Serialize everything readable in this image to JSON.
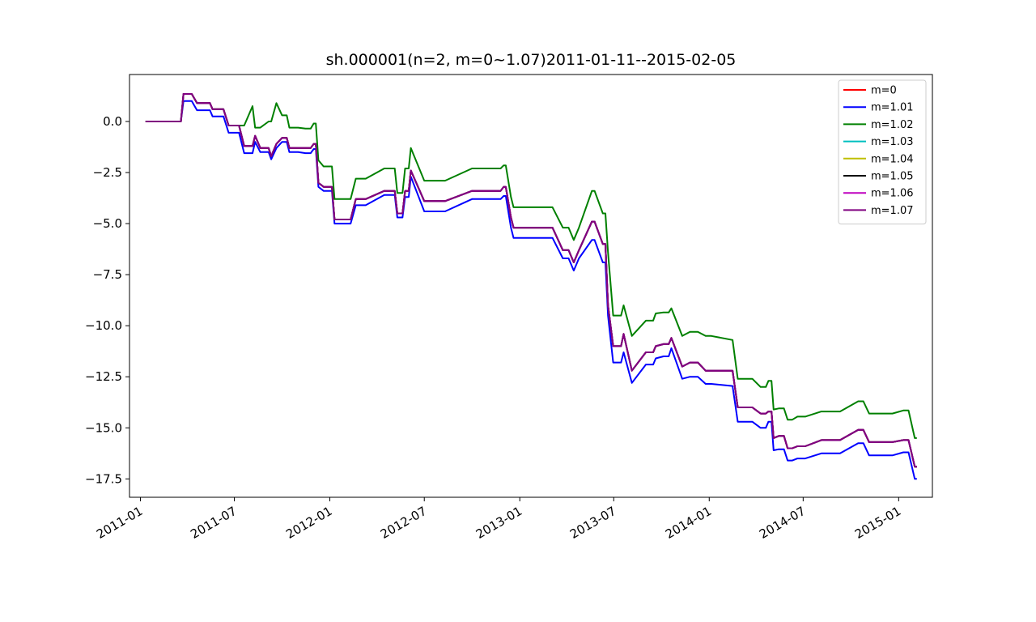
{
  "chart_data": {
    "type": "line",
    "title": "sh.000001(n=2, m=0~1.07)2011-01-11--2015-02-05",
    "xlabel": "",
    "ylabel": "",
    "x_ticks": [
      "2011-01",
      "2011-07",
      "2012-01",
      "2012-07",
      "2013-01",
      "2013-07",
      "2014-01",
      "2014-07",
      "2015-01"
    ],
    "x_range": [
      "2010-12-11",
      "2015-03-07"
    ],
    "y_ticks": [
      "0.0",
      "−2.5",
      "−5.0",
      "−7.5",
      "−10.0",
      "−12.5",
      "−15.0",
      "−17.5"
    ],
    "ylim": [
      -18.4,
      2.3
    ],
    "grid": false,
    "legend_position": "top-right",
    "x": [
      "2011-01-11",
      "2011-03-20",
      "2011-03-25",
      "2011-04-10",
      "2011-04-20",
      "2011-05-15",
      "2011-05-20",
      "2011-06-10",
      "2011-06-20",
      "2011-07-10",
      "2011-07-20",
      "2011-08-05",
      "2011-08-10",
      "2011-08-20",
      "2011-09-05",
      "2011-09-10",
      "2011-09-20",
      "2011-10-01",
      "2011-10-10",
      "2011-10-15",
      "2011-11-01",
      "2011-11-15",
      "2011-11-25",
      "2011-12-01",
      "2011-12-05",
      "2011-12-10",
      "2011-12-20",
      "2012-01-05",
      "2012-01-10",
      "2012-02-10",
      "2012-02-20",
      "2012-03-10",
      "2012-04-15",
      "2012-04-25",
      "2012-05-05",
      "2012-05-10",
      "2012-05-20",
      "2012-05-25",
      "2012-06-01",
      "2012-06-05",
      "2012-07-01",
      "2012-08-01",
      "2012-08-10",
      "2012-10-01",
      "2012-11-25",
      "2012-12-01",
      "2012-12-05",
      "2012-12-15",
      "2012-12-20",
      "2013-03-01",
      "2013-03-05",
      "2013-03-25",
      "2013-04-05",
      "2013-04-15",
      "2013-04-25",
      "2013-05-20",
      "2013-05-25",
      "2013-06-10",
      "2013-06-15",
      "2013-06-20",
      "2013-06-30",
      "2013-07-15",
      "2013-07-20",
      "2013-08-05",
      "2013-09-01",
      "2013-09-15",
      "2013-09-20",
      "2013-10-05",
      "2013-10-15",
      "2013-10-20",
      "2013-11-10",
      "2013-11-25",
      "2013-12-10",
      "2013-12-25",
      "2014-01-05",
      "2014-02-15",
      "2014-02-25",
      "2014-03-25",
      "2014-04-10",
      "2014-04-20",
      "2014-04-25",
      "2014-05-01",
      "2014-05-05",
      "2014-05-15",
      "2014-05-25",
      "2014-06-01",
      "2014-06-10",
      "2014-06-20",
      "2014-07-05",
      "2014-08-05",
      "2014-09-10",
      "2014-10-15",
      "2014-10-25",
      "2014-11-05",
      "2014-12-20",
      "2015-01-10",
      "2015-01-20",
      "2015-02-01",
      "2015-02-05"
    ],
    "series": [
      {
        "name": "m=0",
        "color": "#ff0000",
        "values": [
          0.0,
          0.0,
          1.35,
          1.35,
          0.9,
          0.9,
          0.6,
          0.6,
          -0.2,
          -0.2,
          -1.2,
          -1.2,
          -0.7,
          -1.3,
          -1.3,
          -1.7,
          -1.1,
          -0.8,
          -0.8,
          -1.3,
          -1.3,
          -1.3,
          -1.3,
          -1.1,
          -1.1,
          -3.0,
          -3.2,
          -3.2,
          -4.8,
          -4.8,
          -3.8,
          -3.8,
          -3.4,
          -3.4,
          -3.4,
          -4.5,
          -4.5,
          -3.4,
          -3.4,
          -2.4,
          -3.9,
          -3.9,
          -3.9,
          -3.4,
          -3.4,
          -3.2,
          -3.2,
          -4.7,
          -5.2,
          -5.2,
          -5.2,
          -6.3,
          -6.3,
          -6.9,
          -6.3,
          -4.9,
          -4.9,
          -6.0,
          -6.0,
          -9.0,
          -11.0,
          -11.0,
          -10.4,
          -12.2,
          -11.3,
          -11.3,
          -11.0,
          -10.9,
          -10.9,
          -10.6,
          -12.0,
          -11.8,
          -11.8,
          -12.2,
          -12.2,
          -12.2,
          -14.0,
          -14.0,
          -14.3,
          -14.3,
          -14.2,
          -14.2,
          -15.5,
          -15.4,
          -15.4,
          -16.0,
          -16.0,
          -15.9,
          -15.9,
          -15.6,
          -15.6,
          -15.1,
          -15.1,
          -15.7,
          -15.7,
          -15.6,
          -15.6,
          -16.9,
          -16.9
        ]
      },
      {
        "name": "m=1.01",
        "color": "#0000ff",
        "values": [
          0.0,
          0.0,
          1.0,
          1.0,
          0.55,
          0.55,
          0.25,
          0.25,
          -0.55,
          -0.55,
          -1.55,
          -1.55,
          -1.0,
          -1.5,
          -1.5,
          -1.85,
          -1.3,
          -1.0,
          -1.0,
          -1.5,
          -1.5,
          -1.55,
          -1.55,
          -1.35,
          -1.35,
          -3.2,
          -3.4,
          -3.4,
          -5.0,
          -5.0,
          -4.1,
          -4.1,
          -3.6,
          -3.6,
          -3.6,
          -4.7,
          -4.7,
          -3.7,
          -3.7,
          -2.7,
          -4.4,
          -4.4,
          -4.4,
          -3.8,
          -3.8,
          -3.65,
          -3.65,
          -5.2,
          -5.7,
          -5.7,
          -5.7,
          -6.7,
          -6.7,
          -7.3,
          -6.7,
          -5.8,
          -5.8,
          -6.9,
          -6.9,
          -9.5,
          -11.8,
          -11.8,
          -11.3,
          -12.8,
          -11.9,
          -11.9,
          -11.6,
          -11.5,
          -11.5,
          -11.1,
          -12.6,
          -12.5,
          -12.5,
          -12.85,
          -12.85,
          -12.95,
          -14.7,
          -14.7,
          -15.0,
          -15.0,
          -14.7,
          -14.7,
          -16.1,
          -16.05,
          -16.05,
          -16.6,
          -16.6,
          -16.5,
          -16.5,
          -16.25,
          -16.25,
          -15.75,
          -15.75,
          -16.35,
          -16.35,
          -16.2,
          -16.2,
          -17.5,
          -17.5
        ]
      },
      {
        "name": "m=1.02",
        "color": "#008000",
        "values": [
          0.0,
          0.0,
          1.35,
          1.35,
          0.9,
          0.9,
          0.6,
          0.6,
          -0.2,
          -0.2,
          -0.2,
          0.75,
          -0.3,
          -0.3,
          0.0,
          0.0,
          0.9,
          0.3,
          0.3,
          -0.3,
          -0.3,
          -0.35,
          -0.35,
          -0.1,
          -0.1,
          -1.9,
          -2.2,
          -2.2,
          -3.8,
          -3.8,
          -2.8,
          -2.8,
          -2.3,
          -2.3,
          -2.3,
          -3.5,
          -3.5,
          -2.3,
          -2.3,
          -1.3,
          -2.9,
          -2.9,
          -2.9,
          -2.3,
          -2.3,
          -2.15,
          -2.15,
          -3.7,
          -4.2,
          -4.2,
          -4.2,
          -5.2,
          -5.2,
          -5.8,
          -5.2,
          -3.4,
          -3.4,
          -4.5,
          -4.5,
          -6.4,
          -9.5,
          -9.5,
          -9.0,
          -10.5,
          -9.75,
          -9.75,
          -9.4,
          -9.35,
          -9.35,
          -9.15,
          -10.5,
          -10.3,
          -10.3,
          -10.5,
          -10.5,
          -10.7,
          -12.6,
          -12.6,
          -13.0,
          -13.0,
          -12.7,
          -12.7,
          -14.1,
          -14.05,
          -14.05,
          -14.6,
          -14.6,
          -14.45,
          -14.45,
          -14.2,
          -14.2,
          -13.7,
          -13.7,
          -14.3,
          -14.3,
          -14.15,
          -14.15,
          -15.5,
          -15.5
        ]
      },
      {
        "name": "m=1.03",
        "color": "#00bfbf",
        "values": [
          0.0,
          0.0,
          1.35,
          1.35,
          0.9,
          0.9,
          0.6,
          0.6,
          -0.2,
          -0.2,
          -1.2,
          -1.2,
          -0.7,
          -1.3,
          -1.3,
          -1.7,
          -1.1,
          -0.8,
          -0.8,
          -1.3,
          -1.3,
          -1.3,
          -1.3,
          -1.1,
          -1.1,
          -3.0,
          -3.2,
          -3.2,
          -4.8,
          -4.8,
          -3.8,
          -3.8,
          -3.4,
          -3.4,
          -3.4,
          -4.5,
          -4.5,
          -3.4,
          -3.4,
          -2.4,
          -3.9,
          -3.9,
          -3.9,
          -3.4,
          -3.4,
          -3.2,
          -3.2,
          -4.7,
          -5.2,
          -5.2,
          -5.2,
          -6.3,
          -6.3,
          -6.9,
          -6.3,
          -4.9,
          -4.9,
          -6.0,
          -6.0,
          -9.0,
          -11.0,
          -11.0,
          -10.4,
          -12.2,
          -11.3,
          -11.3,
          -11.0,
          -10.9,
          -10.9,
          -10.6,
          -12.0,
          -11.8,
          -11.8,
          -12.2,
          -12.2,
          -12.2,
          -14.0,
          -14.0,
          -14.3,
          -14.3,
          -14.2,
          -14.2,
          -15.5,
          -15.4,
          -15.4,
          -16.0,
          -16.0,
          -15.9,
          -15.9,
          -15.6,
          -15.6,
          -15.1,
          -15.1,
          -15.7,
          -15.7,
          -15.6,
          -15.6,
          -16.9,
          -16.9
        ]
      },
      {
        "name": "m=1.04",
        "color": "#bfbf00",
        "values": [
          0.0,
          0.0,
          1.35,
          1.35,
          0.9,
          0.9,
          0.6,
          0.6,
          -0.2,
          -0.2,
          -1.2,
          -1.2,
          -0.7,
          -1.3,
          -1.3,
          -1.7,
          -1.1,
          -0.8,
          -0.8,
          -1.3,
          -1.3,
          -1.3,
          -1.3,
          -1.1,
          -1.1,
          -3.0,
          -3.2,
          -3.2,
          -4.8,
          -4.8,
          -3.8,
          -3.8,
          -3.4,
          -3.4,
          -3.4,
          -4.5,
          -4.5,
          -3.4,
          -3.4,
          -2.4,
          -3.9,
          -3.9,
          -3.9,
          -3.4,
          -3.4,
          -3.2,
          -3.2,
          -4.7,
          -5.2,
          -5.2,
          -5.2,
          -6.3,
          -6.3,
          -6.9,
          -6.3,
          -4.9,
          -4.9,
          -6.0,
          -6.0,
          -9.0,
          -11.0,
          -11.0,
          -10.4,
          -12.2,
          -11.3,
          -11.3,
          -11.0,
          -10.9,
          -10.9,
          -10.6,
          -12.0,
          -11.8,
          -11.8,
          -12.2,
          -12.2,
          -12.2,
          -14.0,
          -14.0,
          -14.3,
          -14.3,
          -14.2,
          -14.2,
          -15.5,
          -15.4,
          -15.4,
          -16.0,
          -16.0,
          -15.9,
          -15.9,
          -15.6,
          -15.6,
          -15.1,
          -15.1,
          -15.7,
          -15.7,
          -15.6,
          -15.6,
          -16.9,
          -16.9
        ]
      },
      {
        "name": "m=1.05",
        "color": "#000000",
        "values": [
          0.0,
          0.0,
          1.35,
          1.35,
          0.9,
          0.9,
          0.6,
          0.6,
          -0.2,
          -0.2,
          -1.2,
          -1.2,
          -0.7,
          -1.3,
          -1.3,
          -1.7,
          -1.1,
          -0.8,
          -0.8,
          -1.3,
          -1.3,
          -1.3,
          -1.3,
          -1.1,
          -1.1,
          -3.0,
          -3.2,
          -3.2,
          -4.8,
          -4.8,
          -3.8,
          -3.8,
          -3.4,
          -3.4,
          -3.4,
          -4.5,
          -4.5,
          -3.4,
          -3.4,
          -2.4,
          -3.9,
          -3.9,
          -3.9,
          -3.4,
          -3.4,
          -3.2,
          -3.2,
          -4.7,
          -5.2,
          -5.2,
          -5.2,
          -6.3,
          -6.3,
          -6.9,
          -6.3,
          -4.9,
          -4.9,
          -6.0,
          -6.0,
          -9.0,
          -11.0,
          -11.0,
          -10.4,
          -12.2,
          -11.3,
          -11.3,
          -11.0,
          -10.9,
          -10.9,
          -10.6,
          -12.0,
          -11.8,
          -11.8,
          -12.2,
          -12.2,
          -12.2,
          -14.0,
          -14.0,
          -14.3,
          -14.3,
          -14.2,
          -14.2,
          -15.5,
          -15.4,
          -15.4,
          -16.0,
          -16.0,
          -15.9,
          -15.9,
          -15.6,
          -15.6,
          -15.1,
          -15.1,
          -15.7,
          -15.7,
          -15.6,
          -15.6,
          -16.9,
          -16.9
        ]
      },
      {
        "name": "m=1.06",
        "color": "#bf00bf",
        "values": [
          0.0,
          0.0,
          1.35,
          1.35,
          0.9,
          0.9,
          0.6,
          0.6,
          -0.2,
          -0.2,
          -1.2,
          -1.2,
          -0.7,
          -1.3,
          -1.3,
          -1.7,
          -1.1,
          -0.8,
          -0.8,
          -1.3,
          -1.3,
          -1.3,
          -1.3,
          -1.1,
          -1.1,
          -3.0,
          -3.2,
          -3.2,
          -4.8,
          -4.8,
          -3.8,
          -3.8,
          -3.4,
          -3.4,
          -3.4,
          -4.5,
          -4.5,
          -3.4,
          -3.4,
          -2.4,
          -3.9,
          -3.9,
          -3.9,
          -3.4,
          -3.4,
          -3.2,
          -3.2,
          -4.7,
          -5.2,
          -5.2,
          -5.2,
          -6.3,
          -6.3,
          -6.9,
          -6.3,
          -4.9,
          -4.9,
          -6.0,
          -6.0,
          -9.0,
          -11.0,
          -11.0,
          -10.4,
          -12.2,
          -11.3,
          -11.3,
          -11.0,
          -10.9,
          -10.9,
          -10.6,
          -12.0,
          -11.8,
          -11.8,
          -12.2,
          -12.2,
          -12.2,
          -14.0,
          -14.0,
          -14.3,
          -14.3,
          -14.2,
          -14.2,
          -15.5,
          -15.4,
          -15.4,
          -16.0,
          -16.0,
          -15.9,
          -15.9,
          -15.6,
          -15.6,
          -15.1,
          -15.1,
          -15.7,
          -15.7,
          -15.6,
          -15.6,
          -16.9,
          -16.9
        ]
      },
      {
        "name": "m=1.07",
        "color": "#800080",
        "values": [
          0.0,
          0.0,
          1.35,
          1.35,
          0.9,
          0.9,
          0.6,
          0.6,
          -0.2,
          -0.2,
          -1.2,
          -1.2,
          -0.7,
          -1.3,
          -1.3,
          -1.7,
          -1.1,
          -0.8,
          -0.8,
          -1.3,
          -1.3,
          -1.3,
          -1.3,
          -1.1,
          -1.1,
          -3.0,
          -3.2,
          -3.2,
          -4.8,
          -4.8,
          -3.8,
          -3.8,
          -3.4,
          -3.4,
          -3.4,
          -4.5,
          -4.5,
          -3.4,
          -3.4,
          -2.4,
          -3.9,
          -3.9,
          -3.9,
          -3.4,
          -3.4,
          -3.2,
          -3.2,
          -4.7,
          -5.2,
          -5.2,
          -5.2,
          -6.3,
          -6.3,
          -6.9,
          -6.3,
          -4.9,
          -4.9,
          -6.0,
          -6.0,
          -9.0,
          -11.0,
          -11.0,
          -10.4,
          -12.2,
          -11.3,
          -11.3,
          -11.0,
          -10.9,
          -10.9,
          -10.6,
          -12.0,
          -11.8,
          -11.8,
          -12.2,
          -12.2,
          -12.2,
          -14.0,
          -14.0,
          -14.3,
          -14.3,
          -14.2,
          -14.2,
          -15.5,
          -15.4,
          -15.4,
          -16.0,
          -16.0,
          -15.9,
          -15.9,
          -15.6,
          -15.6,
          -15.1,
          -15.1,
          -15.7,
          -15.7,
          -15.6,
          -15.6,
          -16.9,
          -16.9
        ]
      }
    ]
  }
}
